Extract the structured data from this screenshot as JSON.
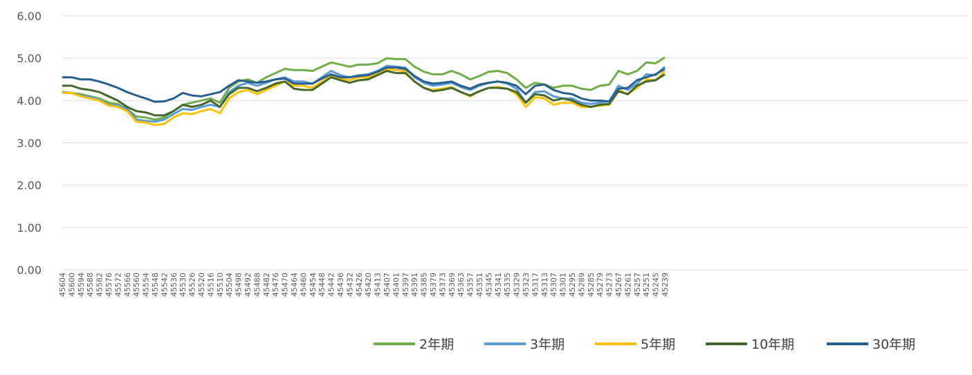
{
  "chart_data": {
    "type": "line",
    "categories": [
      "45604",
      "45600",
      "45594",
      "45588",
      "45582",
      "45576",
      "45572",
      "45566",
      "45560",
      "45554",
      "45548",
      "45542",
      "45536",
      "45530",
      "45526",
      "45520",
      "45516",
      "45510",
      "45504",
      "45498",
      "45492",
      "45488",
      "45482",
      "45476",
      "45470",
      "45464",
      "45460",
      "45454",
      "45448",
      "45442",
      "45436",
      "45432",
      "45426",
      "45420",
      "45413",
      "45407",
      "45401",
      "45397",
      "45391",
      "45385",
      "45379",
      "45373",
      "45369",
      "45363",
      "45357",
      "45351",
      "45345",
      "45341",
      "45335",
      "45329",
      "45323",
      "45317",
      "45313",
      "45307",
      "45301",
      "45295",
      "45289",
      "45285",
      "45279",
      "45273",
      "45267",
      "45261",
      "45257",
      "45251",
      "45245",
      "45239"
    ],
    "series": [
      {
        "name": "2年期",
        "color": "#70ad47",
        "values": [
          4.2,
          4.18,
          4.15,
          4.1,
          4.05,
          3.95,
          3.92,
          3.8,
          3.62,
          3.6,
          3.55,
          3.6,
          3.75,
          3.9,
          3.95,
          4.0,
          4.05,
          3.95,
          4.3,
          4.45,
          4.5,
          4.42,
          4.55,
          4.65,
          4.75,
          4.72,
          4.72,
          4.7,
          4.8,
          4.9,
          4.85,
          4.8,
          4.85,
          4.85,
          4.88,
          5.0,
          4.98,
          4.98,
          4.8,
          4.68,
          4.62,
          4.62,
          4.7,
          4.62,
          4.5,
          4.58,
          4.68,
          4.7,
          4.65,
          4.5,
          4.3,
          4.42,
          4.38,
          4.3,
          4.35,
          4.35,
          4.28,
          4.25,
          4.35,
          4.38,
          4.7,
          4.62,
          4.7,
          4.9,
          4.88,
          5.02
        ]
      },
      {
        "name": "3年期",
        "color": "#5b9bd5",
        "values": [
          4.2,
          4.18,
          4.12,
          4.08,
          4.02,
          3.9,
          3.88,
          3.8,
          3.55,
          3.52,
          3.5,
          3.55,
          3.68,
          3.8,
          3.78,
          3.85,
          3.9,
          3.85,
          4.2,
          4.35,
          4.42,
          4.35,
          4.42,
          4.5,
          4.55,
          4.45,
          4.45,
          4.4,
          4.55,
          4.7,
          4.6,
          4.55,
          4.6,
          4.62,
          4.7,
          4.82,
          4.8,
          4.78,
          4.55,
          4.42,
          4.35,
          4.38,
          4.42,
          4.32,
          4.25,
          4.35,
          4.42,
          4.45,
          4.4,
          4.28,
          3.95,
          4.2,
          4.22,
          4.1,
          4.05,
          4.05,
          3.95,
          3.92,
          3.95,
          3.98,
          4.35,
          4.25,
          4.4,
          4.62,
          4.6,
          4.8
        ]
      },
      {
        "name": "5年期",
        "color": "#ffc000",
        "values": [
          4.18,
          4.18,
          4.1,
          4.05,
          4.0,
          3.88,
          3.85,
          3.75,
          3.5,
          3.48,
          3.42,
          3.45,
          3.6,
          3.7,
          3.68,
          3.75,
          3.8,
          3.7,
          4.05,
          4.2,
          4.25,
          4.15,
          4.25,
          4.35,
          4.45,
          4.35,
          4.35,
          4.3,
          4.45,
          4.6,
          4.52,
          4.48,
          4.55,
          4.55,
          4.65,
          4.75,
          4.72,
          4.7,
          4.45,
          4.3,
          4.25,
          4.28,
          4.32,
          4.2,
          4.1,
          4.22,
          4.3,
          4.32,
          4.28,
          4.15,
          3.85,
          4.08,
          4.05,
          3.9,
          3.95,
          3.95,
          3.85,
          3.85,
          3.88,
          3.9,
          4.25,
          4.15,
          4.3,
          4.5,
          4.48,
          4.7
        ]
      },
      {
        "name": "10年期",
        "color": "#43682b",
        "values": [
          4.35,
          4.35,
          4.28,
          4.25,
          4.2,
          4.1,
          4.0,
          3.85,
          3.75,
          3.72,
          3.65,
          3.65,
          3.75,
          3.9,
          3.85,
          3.9,
          4.0,
          3.85,
          4.15,
          4.3,
          4.3,
          4.22,
          4.3,
          4.4,
          4.45,
          4.28,
          4.25,
          4.25,
          4.4,
          4.55,
          4.48,
          4.42,
          4.48,
          4.5,
          4.6,
          4.7,
          4.65,
          4.65,
          4.45,
          4.3,
          4.22,
          4.25,
          4.3,
          4.2,
          4.12,
          4.22,
          4.3,
          4.3,
          4.28,
          4.2,
          3.95,
          4.15,
          4.12,
          4.0,
          4.05,
          4.0,
          3.9,
          3.85,
          3.9,
          3.92,
          4.22,
          4.15,
          4.35,
          4.45,
          4.48,
          4.62
        ]
      },
      {
        "name": "30年期",
        "color": "#255e91",
        "values": [
          4.55,
          4.55,
          4.5,
          4.5,
          4.45,
          4.38,
          4.3,
          4.2,
          4.12,
          4.05,
          3.97,
          3.98,
          4.05,
          4.18,
          4.12,
          4.1,
          4.15,
          4.2,
          4.35,
          4.48,
          4.45,
          4.42,
          4.45,
          4.5,
          4.52,
          4.4,
          4.4,
          4.4,
          4.52,
          4.62,
          4.55,
          4.55,
          4.58,
          4.6,
          4.68,
          4.78,
          4.78,
          4.75,
          4.58,
          4.45,
          4.4,
          4.42,
          4.45,
          4.35,
          4.28,
          4.38,
          4.42,
          4.45,
          4.42,
          4.35,
          4.15,
          4.35,
          4.38,
          4.25,
          4.18,
          4.15,
          4.05,
          4.0,
          4.0,
          3.98,
          4.28,
          4.3,
          4.48,
          4.55,
          4.62,
          4.75
        ]
      }
    ],
    "ylim": [
      0,
      6
    ],
    "yticks": [
      {
        "value": 0,
        "label": "0.00"
      },
      {
        "value": 1,
        "label": "1.00"
      },
      {
        "value": 2,
        "label": "2.00"
      },
      {
        "value": 3,
        "label": "3.00"
      },
      {
        "value": 4,
        "label": "4.00"
      },
      {
        "value": 5,
        "label": "5.00"
      },
      {
        "value": 6,
        "label": "6.00"
      }
    ],
    "grid": true,
    "legend": "bottom-right"
  }
}
